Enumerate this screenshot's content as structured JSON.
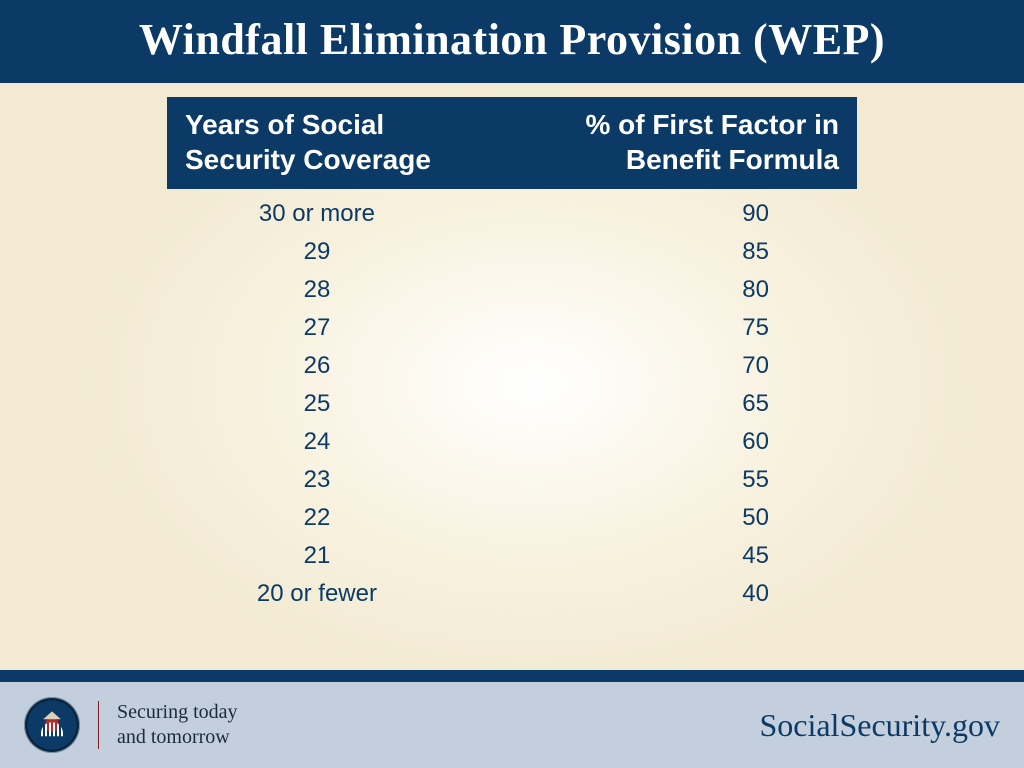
{
  "colors": {
    "brand_navy": "#0c3a66",
    "footer_bg": "#c3cfdd",
    "page_bg_outer": "#f2ead2",
    "page_bg_inner": "#ffffff",
    "text_navy": "#0c3a66",
    "divider_maroon": "#7a1f1f"
  },
  "title": "Windfall Elimination Provision (WEP)",
  "table": {
    "type": "table",
    "header": {
      "col1_line1": "Years of Social",
      "col1_line2": "Security Coverage",
      "col2_line1": "% of First Factor in",
      "col2_line2": "Benefit Formula"
    },
    "header_fontsize": 28,
    "body_fontsize": 24,
    "body_color": "#0c3a66",
    "rows": [
      {
        "years": "30 or more",
        "pct": "90"
      },
      {
        "years": "29",
        "pct": "85"
      },
      {
        "years": "28",
        "pct": "80"
      },
      {
        "years": "27",
        "pct": "75"
      },
      {
        "years": "26",
        "pct": "70"
      },
      {
        "years": "25",
        "pct": "65"
      },
      {
        "years": "24",
        "pct": "60"
      },
      {
        "years": "23",
        "pct": "55"
      },
      {
        "years": "22",
        "pct": "50"
      },
      {
        "years": "21",
        "pct": "45"
      },
      {
        "years": "20 or fewer",
        "pct": "40"
      }
    ]
  },
  "footer": {
    "tagline_line1": "Securing today",
    "tagline_line2": "and tomorrow",
    "site": "SocialSecurity.gov"
  }
}
